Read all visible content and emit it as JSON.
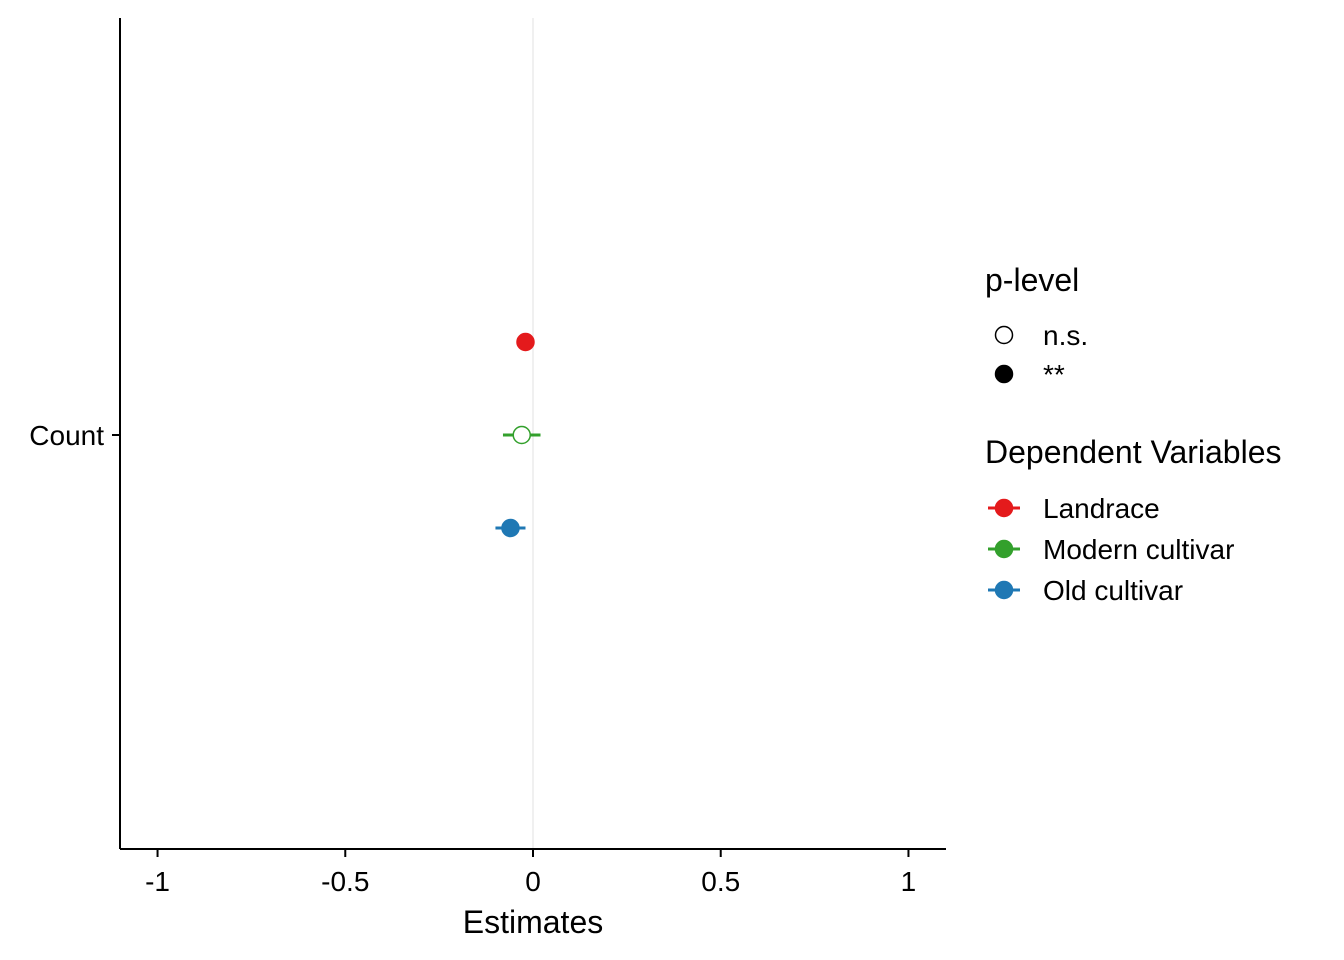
{
  "chart_data": {
    "type": "scatter",
    "subtype": "coefficient-plot",
    "title": "",
    "xlabel": "Estimates",
    "ylabel": "",
    "xlim": [
      -1.1,
      1.1
    ],
    "x_ticks": [
      -1,
      -0.5,
      0,
      0.5,
      1
    ],
    "x_tick_labels": [
      "-1",
      "-0.5",
      "0",
      "0.5",
      "1"
    ],
    "categories": [
      "Count"
    ],
    "reference_line_x": 0,
    "grid": false,
    "legend_position": "right",
    "series": [
      {
        "name": "Landrace",
        "color": "#E41A1C",
        "estimate": -0.02,
        "ci_low": -0.03,
        "ci_high": -0.01,
        "p_level": "**"
      },
      {
        "name": "Modern cultivar",
        "color": "#33A02C",
        "estimate": -0.03,
        "ci_low": -0.08,
        "ci_high": 0.02,
        "p_level": "n.s."
      },
      {
        "name": "Old cultivar",
        "color": "#1F78B4",
        "estimate": -0.06,
        "ci_low": -0.1,
        "ci_high": -0.02,
        "p_level": "**"
      }
    ],
    "legends": {
      "p_level": {
        "title": "p-level",
        "items": [
          {
            "label": "n.s.",
            "marker": "open-circle"
          },
          {
            "label": "**",
            "marker": "filled-circle"
          }
        ]
      },
      "dependent": {
        "title": "Dependent Variables"
      }
    }
  }
}
